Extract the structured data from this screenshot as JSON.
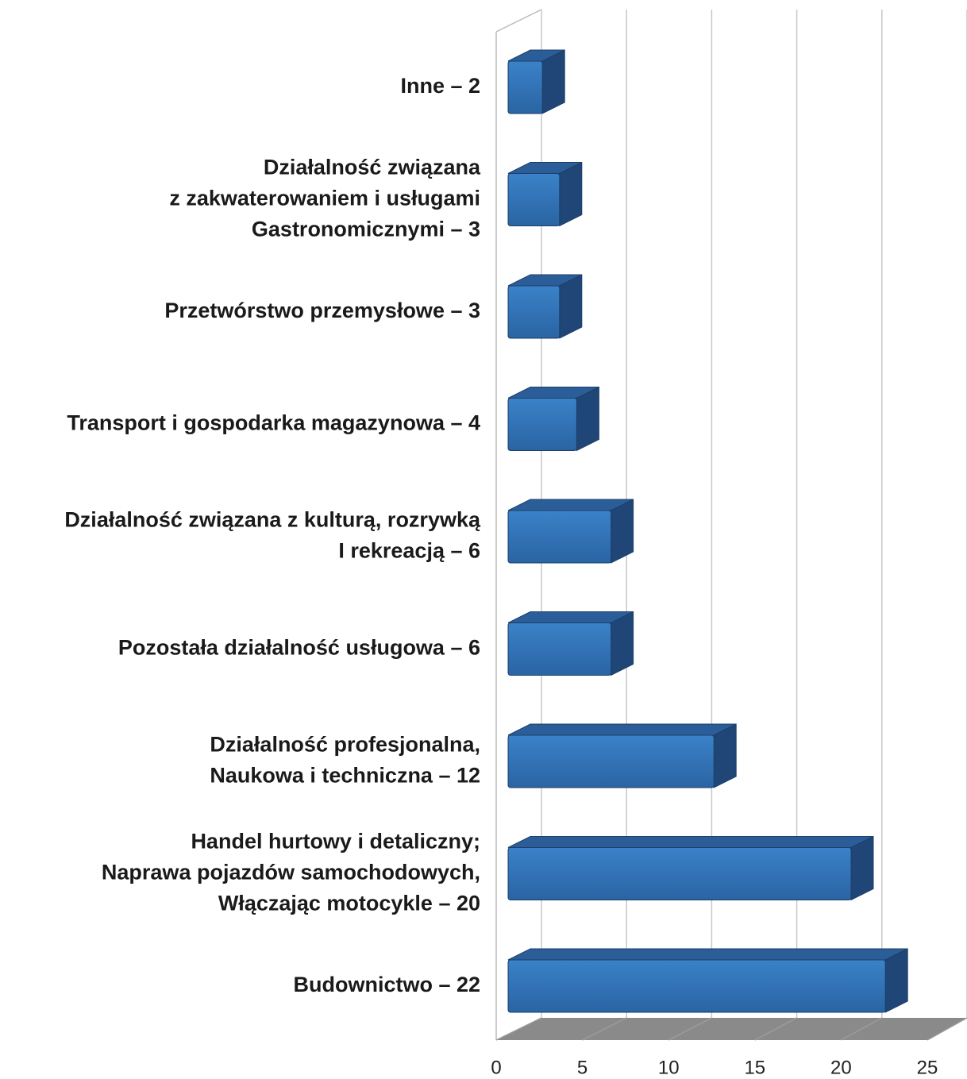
{
  "chart_data": {
    "type": "bar3d_horizontal",
    "categories": [
      [
        "Inne – 2"
      ],
      [
        "Działalność związana",
        "z zakwaterowaniem i usługami",
        "Gastronomicznymi – 3"
      ],
      [
        "Przetwórstwo przemysłowe – 3"
      ],
      [
        "Transport i gospodarka magazynowa – 4"
      ],
      [
        "Działalność związana z kulturą, rozrywką",
        "I rekreacją – 6"
      ],
      [
        "Pozostała działalność usługowa – 6"
      ],
      [
        "Działalność profesjonalna,",
        "Naukowa i techniczna – 12"
      ],
      [
        "Handel hurtowy i detaliczny;",
        "Naprawa pojazdów samochodowych,",
        "Włączając motocykle – 20"
      ],
      [
        "Budownictwo – 22"
      ]
    ],
    "values": [
      2,
      3,
      3,
      4,
      6,
      6,
      12,
      20,
      22
    ],
    "color": "#2f6fb3",
    "xlim": [
      0,
      25
    ],
    "xticks": [
      0,
      5,
      10,
      15,
      20,
      25
    ],
    "grid": true
  }
}
